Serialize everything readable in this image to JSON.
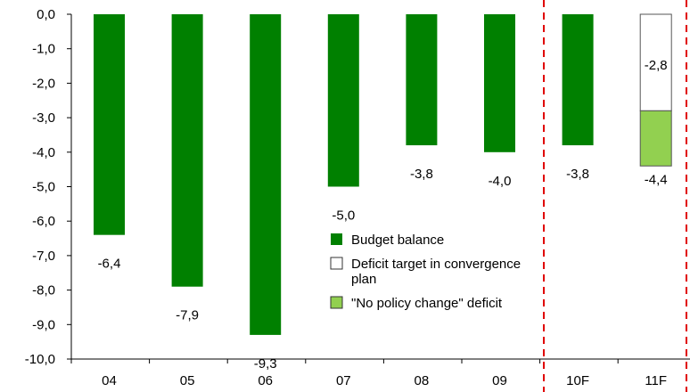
{
  "chart_data": {
    "type": "bar",
    "categories": [
      "04",
      "05",
      "06",
      "07",
      "08",
      "09",
      "10F",
      "11F"
    ],
    "series": [
      {
        "name": "Budget balance",
        "color": "#008000",
        "values": [
          -6.4,
          -7.9,
          -9.3,
          -5.0,
          -3.8,
          -4.0,
          -3.8,
          null
        ],
        "labels": [
          "-6,4",
          "-7,9",
          "-9,3",
          "-5,0",
          "-3,8",
          "-4,0",
          "-3,8",
          ""
        ]
      },
      {
        "name": "Deficit target in convergence plan",
        "color": "#ffffff",
        "values": [
          null,
          null,
          null,
          null,
          null,
          null,
          null,
          -2.8
        ],
        "labels": [
          "",
          "",
          "",
          "",
          "",
          "",
          "",
          "-2,8"
        ]
      },
      {
        "name": "\"No policy change\" deficit",
        "color": "#92d050",
        "values": [
          null,
          null,
          null,
          null,
          null,
          null,
          null,
          -4.4
        ],
        "labels": [
          "",
          "",
          "",
          "",
          "",
          "",
          "",
          "-4,4"
        ]
      }
    ],
    "legend": {
      "placement": "lower-center",
      "items": [
        {
          "text": "Budget balance",
          "color": "#008000"
        },
        {
          "text": "Deficit target in convergence",
          "text2": "plan",
          "color": "#ffffff"
        },
        {
          "text": "\"No policy change\" deficit",
          "color": "#92d050"
        }
      ]
    },
    "ylim": [
      -10,
      0
    ],
    "yticks": [
      {
        "v": 0,
        "label": "0,0"
      },
      {
        "v": -1,
        "label": "-1,0"
      },
      {
        "v": -2,
        "label": "-2,0"
      },
      {
        "v": -3,
        "label": "-3,0"
      },
      {
        "v": -4,
        "label": "-4,0"
      },
      {
        "v": -5,
        "label": "-5,0"
      },
      {
        "v": -6,
        "label": "-6,0"
      },
      {
        "v": -7,
        "label": "-7,0"
      },
      {
        "v": -8,
        "label": "-8,0"
      },
      {
        "v": -9,
        "label": "-9,0"
      },
      {
        "v": -10,
        "label": "-10,0"
      }
    ],
    "forecast_separators": [
      "between 09 and 10F",
      "after 11F"
    ],
    "separator_color": "#e00000",
    "grid": false,
    "title": "",
    "xlabel": "",
    "ylabel": ""
  }
}
